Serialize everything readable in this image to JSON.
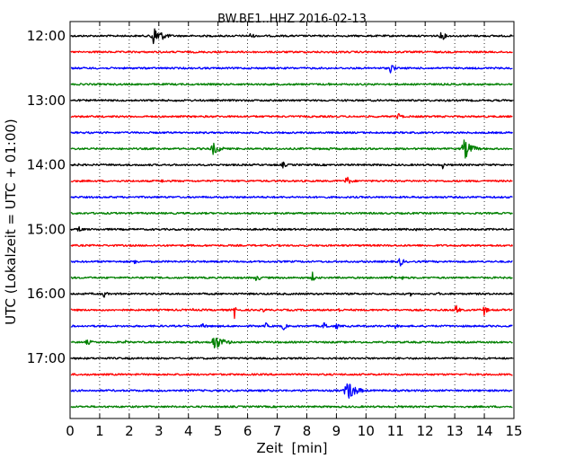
{
  "chart_data": {
    "type": "line",
    "title": "BW.BE1..HHZ 2016-02-13",
    "xlabel": "Zeit  [min]",
    "ylabel": "UTC (Lokalzeit = UTC + 01:00)",
    "xlim": [
      0,
      15
    ],
    "x_ticks": [
      "0",
      "1",
      "2",
      "3",
      "4",
      "5",
      "6",
      "7",
      "8",
      "9",
      "10",
      "11",
      "12",
      "13",
      "14",
      "15"
    ],
    "y_ticks": [
      {
        "label": "12:00",
        "row": 0
      },
      {
        "label": "13:00",
        "row": 4
      },
      {
        "label": "14:00",
        "row": 8
      },
      {
        "label": "15:00",
        "row": 12
      },
      {
        "label": "16:00",
        "row": 16
      },
      {
        "label": "17:00",
        "row": 20
      }
    ],
    "grid": "vertical dotted at each minute",
    "colors": [
      "#000000",
      "#ff0000",
      "#0000ff",
      "#008000"
    ],
    "rows": [
      {
        "start": "12:00",
        "color": "#000000",
        "events": [
          [
            2.85,
            1.0,
            0.35
          ],
          [
            6.1,
            0.3,
            0.2
          ],
          [
            12.55,
            0.6,
            0.15
          ],
          [
            0.6,
            0.1,
            0.1
          ]
        ]
      },
      {
        "start": "12:15",
        "color": "#ff0000",
        "events": []
      },
      {
        "start": "12:30",
        "color": "#0000ff",
        "events": [
          [
            10.85,
            0.8,
            0.12
          ],
          [
            12.0,
            0.1,
            0.1
          ]
        ]
      },
      {
        "start": "12:45",
        "color": "#008000",
        "events": [
          [
            8.75,
            0.25,
            0.03
          ]
        ]
      },
      {
        "start": "13:00",
        "color": "#000000",
        "events": [
          [
            3.6,
            0.15,
            0.15
          ],
          [
            6.8,
            0.12,
            0.1
          ],
          [
            11.1,
            0.12,
            0.1
          ]
        ]
      },
      {
        "start": "13:15",
        "color": "#ff0000",
        "events": [
          [
            11.1,
            0.55,
            0.12
          ],
          [
            13.3,
            0.12,
            0.05
          ]
        ]
      },
      {
        "start": "13:30",
        "color": "#0000ff",
        "events": []
      },
      {
        "start": "13:45",
        "color": "#008000",
        "events": [
          [
            4.85,
            0.6,
            0.3
          ],
          [
            8.7,
            0.2,
            0.2
          ],
          [
            13.35,
            1.0,
            0.3
          ]
        ]
      },
      {
        "start": "14:00",
        "color": "#000000",
        "events": [
          [
            0.25,
            0.35,
            0.04
          ],
          [
            7.2,
            0.35,
            0.15
          ],
          [
            12.6,
            0.45,
            0.08
          ]
        ]
      },
      {
        "start": "14:15",
        "color": "#ff0000",
        "events": [
          [
            3.1,
            0.35,
            0.05
          ],
          [
            9.35,
            0.5,
            0.2
          ]
        ]
      },
      {
        "start": "14:30",
        "color": "#0000ff",
        "events": []
      },
      {
        "start": "14:45",
        "color": "#008000",
        "events": []
      },
      {
        "start": "15:00",
        "color": "#000000",
        "events": [
          [
            0.3,
            0.5,
            0.1
          ],
          [
            9.8,
            0.15,
            0.1
          ],
          [
            10.8,
            0.15,
            0.1
          ],
          [
            11.7,
            0.15,
            0.05
          ]
        ]
      },
      {
        "start": "15:15",
        "color": "#ff0000",
        "events": [
          [
            5.95,
            0.3,
            0.03
          ]
        ]
      },
      {
        "start": "15:30",
        "color": "#0000ff",
        "events": [
          [
            2.2,
            0.6,
            0.08
          ],
          [
            11.15,
            0.55,
            0.15
          ]
        ]
      },
      {
        "start": "15:45",
        "color": "#008000",
        "events": [
          [
            6.3,
            0.3,
            0.3
          ],
          [
            8.2,
            0.6,
            0.1
          ],
          [
            10.9,
            0.3,
            0.15
          ],
          [
            11.2,
            0.3,
            0.1
          ]
        ]
      },
      {
        "start": "16:00",
        "color": "#000000",
        "events": [
          [
            1.15,
            0.45,
            0.12
          ],
          [
            7.95,
            0.25,
            0.05
          ],
          [
            8.9,
            0.35,
            0.05
          ],
          [
            11.5,
            0.3,
            0.04
          ],
          [
            12.45,
            0.3,
            0.03
          ]
        ]
      },
      {
        "start": "16:15",
        "color": "#ff0000",
        "events": [
          [
            4.15,
            0.2,
            0.1
          ],
          [
            5.55,
            1.0,
            0.06
          ],
          [
            6.55,
            0.25,
            0.15
          ],
          [
            9.1,
            0.25,
            0.15
          ],
          [
            13.05,
            0.8,
            0.1
          ],
          [
            14.0,
            0.6,
            0.12
          ]
        ]
      },
      {
        "start": "16:30",
        "color": "#0000ff",
        "events": [
          [
            4.5,
            0.25,
            0.25
          ],
          [
            6.6,
            0.45,
            0.1
          ],
          [
            7.2,
            0.45,
            0.15
          ],
          [
            8.6,
            0.5,
            0.15
          ],
          [
            9.0,
            0.4,
            0.1
          ],
          [
            11.0,
            0.4,
            0.08
          ]
        ]
      },
      {
        "start": "16:45",
        "color": "#008000",
        "events": [
          [
            0.6,
            0.25,
            0.3
          ],
          [
            1.9,
            0.2,
            0.2
          ],
          [
            4.9,
            0.75,
            0.4
          ],
          [
            7.1,
            0.15,
            0.25
          ],
          [
            9.6,
            0.2,
            0.05
          ]
        ]
      },
      {
        "start": "17:00",
        "color": "#000000",
        "events": []
      },
      {
        "start": "17:15",
        "color": "#ff0000",
        "events": []
      },
      {
        "start": "17:30",
        "color": "#0000ff",
        "events": [
          [
            9.4,
            1.0,
            0.35
          ]
        ]
      },
      {
        "start": "17:45",
        "color": "#008000",
        "events": [
          [
            11.1,
            0.15,
            0.05
          ]
        ]
      }
    ]
  }
}
